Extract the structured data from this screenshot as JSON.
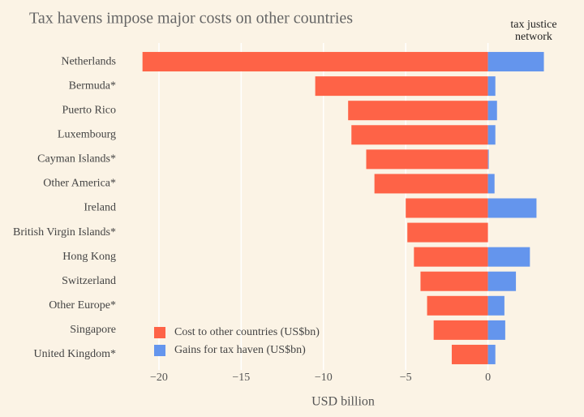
{
  "chart_data": {
    "type": "bar",
    "orientation": "horizontal",
    "title": "Tax havens impose major costs on other countries",
    "xlabel": "USD billion",
    "categories": [
      "Netherlands",
      "Bermuda*",
      "Puerto Rico",
      "Luxembourg",
      "Cayman Islands*",
      "Other America*",
      "Ireland",
      "British Virgin Islands*",
      "Hong Kong",
      "Switzerland",
      "Other Europe*",
      "Singapore",
      "United Kingdom*"
    ],
    "series": [
      {
        "name": "Cost to other countries (US$bn)",
        "color": "#fe6347",
        "values": [
          -21.0,
          -10.5,
          -8.5,
          -8.3,
          -7.4,
          -6.9,
          -5.0,
          -4.9,
          -4.5,
          -4.1,
          -3.7,
          -3.3,
          -2.2
        ]
      },
      {
        "name": "Gains for tax haven (US$bn)",
        "color": "#6495ed",
        "values": [
          3.4,
          0.45,
          0.55,
          0.45,
          0.05,
          0.4,
          2.95,
          0,
          2.55,
          1.7,
          1.0,
          1.05,
          0.45
        ]
      }
    ],
    "xlim": [
      -22,
      5
    ],
    "xticks": [
      {
        "value": -20,
        "label": "−20"
      },
      {
        "value": -15,
        "label": "−15"
      },
      {
        "value": -10,
        "label": "−10"
      },
      {
        "value": -5,
        "label": "−5"
      },
      0
    ],
    "grid": true,
    "legend": "lower left"
  },
  "logo": {
    "line1": "tax justice",
    "line2": "network"
  }
}
